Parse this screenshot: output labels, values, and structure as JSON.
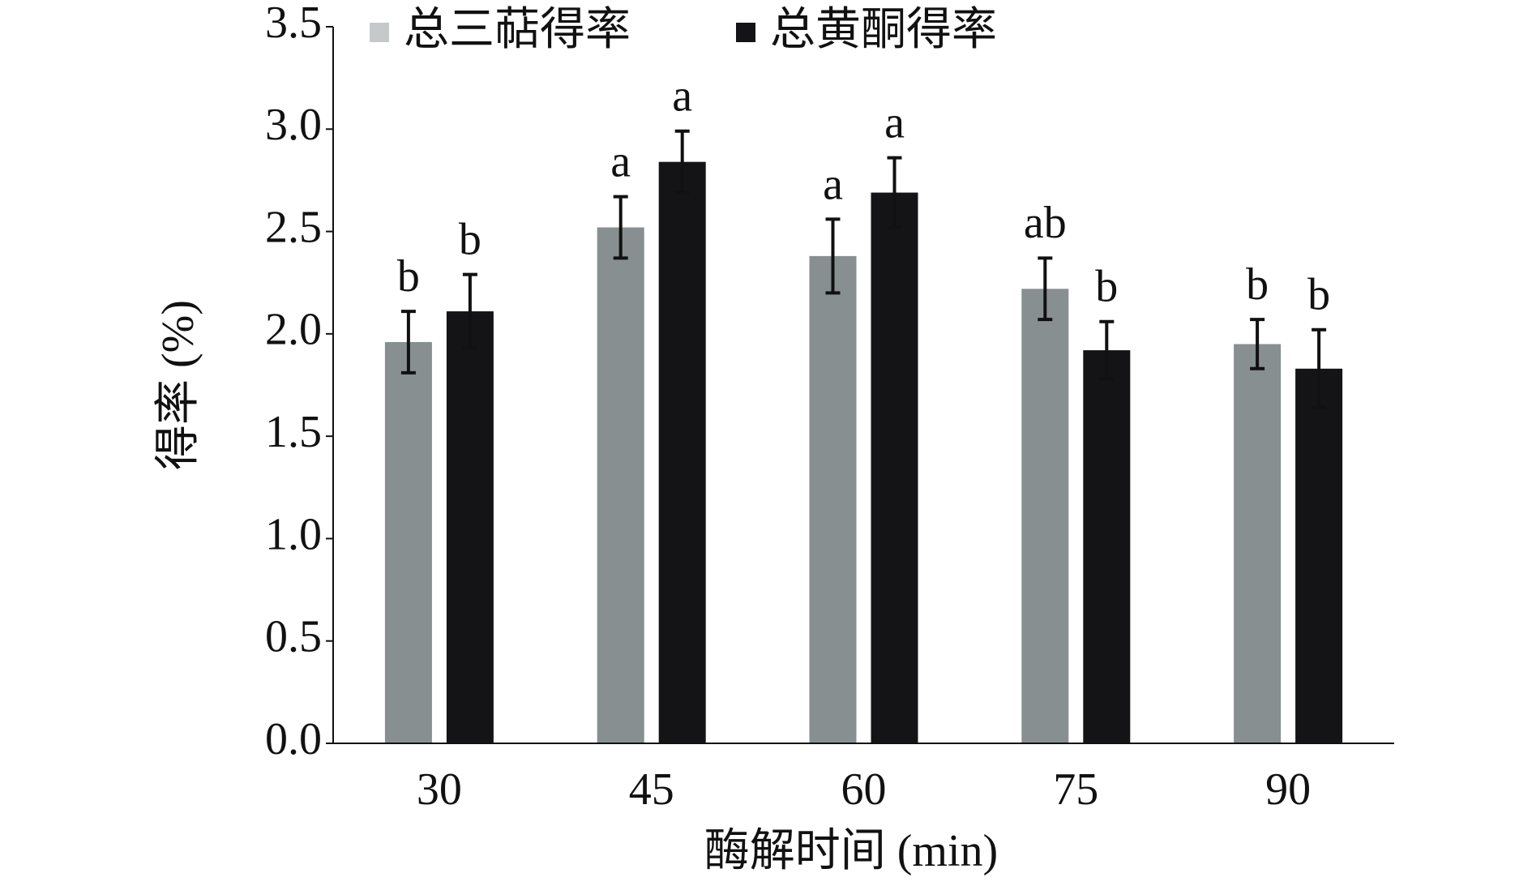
{
  "chart_data": {
    "type": "bar",
    "x_label": "酶解时间 (min)",
    "y_label": "得率 (%)",
    "categories": [
      "30",
      "45",
      "60",
      "75",
      "90"
    ],
    "series": [
      {
        "name": "总三萜得率",
        "color": "#878f91",
        "values": [
          1.96,
          2.52,
          2.38,
          2.22,
          1.95
        ],
        "errors": [
          0.15,
          0.15,
          0.18,
          0.15,
          0.12
        ],
        "letters": [
          "b",
          "a",
          "a",
          "ab",
          "b"
        ]
      },
      {
        "name": "总黄酮得率",
        "color": "#141417",
        "values": [
          2.11,
          2.84,
          2.69,
          1.92,
          1.83
        ],
        "errors": [
          0.18,
          0.15,
          0.17,
          0.14,
          0.19
        ],
        "letters": [
          "b",
          "a",
          "a",
          "b",
          "b"
        ]
      }
    ],
    "ylim": [
      0,
      3.5
    ],
    "yticks": [
      {
        "value": 0,
        "label": "0.0"
      },
      {
        "value": 0.5,
        "label": "0.5"
      },
      {
        "value": 1,
        "label": "1.0"
      },
      {
        "value": 1.5,
        "label": "1.5"
      },
      {
        "value": 2,
        "label": "2.0"
      },
      {
        "value": 2.5,
        "label": "2.5"
      },
      {
        "value": 3,
        "label": "3.0"
      },
      {
        "value": 3.5,
        "label": "3.5"
      }
    ],
    "legend": "top-left"
  }
}
